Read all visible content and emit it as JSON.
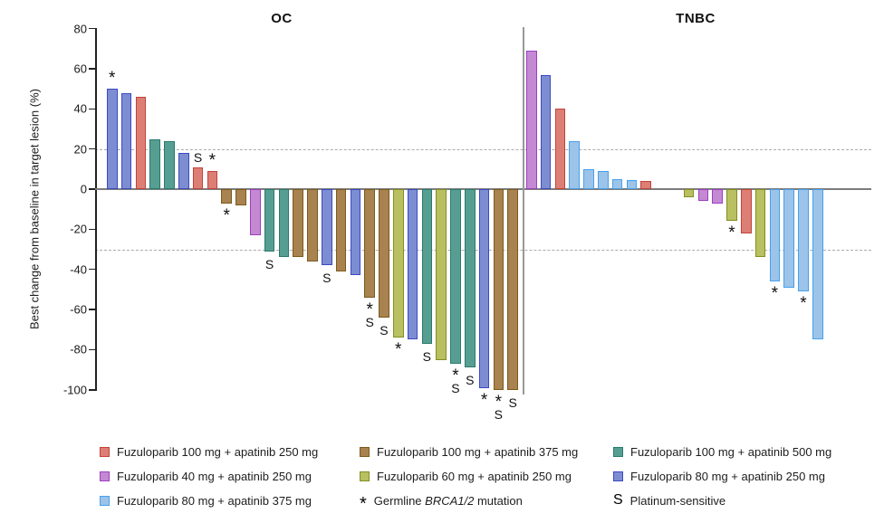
{
  "figure": {
    "y_axis_label": "Best change from baseline in target lesion (%)"
  },
  "chart_data": {
    "type": "bar",
    "subtype": "waterfall",
    "ylabel": "Best change from baseline in target lesion (%)",
    "ylim": [
      -100,
      80
    ],
    "yticks": [
      80,
      60,
      40,
      20,
      0,
      -20,
      -40,
      -60,
      -80,
      -100
    ],
    "reference_lines": [
      20,
      -30
    ],
    "grid": "off",
    "palette": {
      "red": {
        "fill": "#DD7E75",
        "border": "#C0443C"
      },
      "brown": {
        "fill": "#A8824F",
        "border": "#7C5A1E"
      },
      "teal": {
        "fill": "#579E92",
        "border": "#2A7A6C"
      },
      "purple": {
        "fill": "#C489D3",
        "border": "#9C3FC0"
      },
      "olive": {
        "fill": "#B8C061",
        "border": "#848E21"
      },
      "blueviolet": {
        "fill": "#7D8DD2",
        "border": "#3C49C3"
      },
      "lightblue": {
        "fill": "#9CC4E8",
        "border": "#47A0EE"
      }
    },
    "marker_meanings": {
      "*": "Germline BRCA1/2 mutation",
      "S": "Platinum-sensitive"
    },
    "panels": [
      {
        "name": "OC",
        "gap_after": null,
        "bars": [
          {
            "value": 50,
            "group": "blueviolet",
            "markers": [
              "*"
            ]
          },
          {
            "value": 48,
            "group": "blueviolet",
            "markers": []
          },
          {
            "value": 46,
            "group": "red",
            "markers": []
          },
          {
            "value": 25,
            "group": "teal",
            "markers": []
          },
          {
            "value": 24,
            "group": "teal",
            "markers": []
          },
          {
            "value": 18,
            "group": "blueviolet",
            "markers": []
          },
          {
            "value": 11,
            "group": "red",
            "markers": [
              "S"
            ]
          },
          {
            "value": 9,
            "group": "red",
            "markers": [
              "*"
            ]
          },
          {
            "value": -7,
            "group": "brown",
            "markers": [
              "*"
            ]
          },
          {
            "value": -8,
            "group": "brown",
            "markers": []
          },
          {
            "value": -23,
            "group": "purple",
            "markers": []
          },
          {
            "value": -31,
            "group": "teal",
            "markers": [
              "S"
            ]
          },
          {
            "value": -34,
            "group": "teal",
            "markers": []
          },
          {
            "value": -34,
            "group": "brown",
            "markers": []
          },
          {
            "value": -36,
            "group": "brown",
            "markers": []
          },
          {
            "value": -38,
            "group": "blueviolet",
            "markers": [
              "S"
            ]
          },
          {
            "value": -41,
            "group": "brown",
            "markers": []
          },
          {
            "value": -43,
            "group": "blueviolet",
            "markers": []
          },
          {
            "value": -54,
            "group": "brown",
            "markers": [
              "*",
              "S"
            ]
          },
          {
            "value": -64,
            "group": "brown",
            "markers": [
              "S"
            ]
          },
          {
            "value": -74,
            "group": "olive",
            "markers": [
              "*"
            ]
          },
          {
            "value": -75,
            "group": "blueviolet",
            "markers": []
          },
          {
            "value": -77,
            "group": "teal",
            "markers": [
              "S"
            ]
          },
          {
            "value": -85,
            "group": "olive",
            "markers": []
          },
          {
            "value": -87,
            "group": "teal",
            "markers": [
              "*",
              "S"
            ]
          },
          {
            "value": -89,
            "group": "teal",
            "markers": [
              "S"
            ]
          },
          {
            "value": -99,
            "group": "blueviolet",
            "markers": [
              "*"
            ]
          },
          {
            "value": -100,
            "group": "brown",
            "markers": [
              "*",
              "S"
            ]
          },
          {
            "value": -100,
            "group": "brown",
            "markers": [
              "S"
            ]
          }
        ]
      },
      {
        "name": "TNBC",
        "gap_after": 8,
        "gap_slots": 2,
        "bars": [
          {
            "value": 69,
            "group": "purple",
            "markers": []
          },
          {
            "value": 57,
            "group": "blueviolet",
            "markers": []
          },
          {
            "value": 40,
            "group": "red",
            "markers": []
          },
          {
            "value": 24,
            "group": "lightblue",
            "markers": []
          },
          {
            "value": 10,
            "group": "lightblue",
            "markers": []
          },
          {
            "value": 9,
            "group": "lightblue",
            "markers": []
          },
          {
            "value": 5,
            "group": "lightblue",
            "markers": []
          },
          {
            "value": 4.5,
            "group": "lightblue",
            "markers": []
          },
          {
            "value": 4,
            "group": "red",
            "markers": []
          },
          {
            "value": -4,
            "group": "olive",
            "markers": []
          },
          {
            "value": -6,
            "group": "purple",
            "markers": []
          },
          {
            "value": -7,
            "group": "purple",
            "markers": []
          },
          {
            "value": -16,
            "group": "olive",
            "markers": [
              "*"
            ]
          },
          {
            "value": -22,
            "group": "red",
            "markers": []
          },
          {
            "value": -34,
            "group": "olive",
            "markers": []
          },
          {
            "value": -46,
            "group": "lightblue",
            "markers": [
              "*"
            ]
          },
          {
            "value": -49,
            "group": "lightblue",
            "markers": []
          },
          {
            "value": -51,
            "group": "lightblue",
            "markers": [
              "*"
            ]
          },
          {
            "value": -75,
            "group": "lightblue",
            "markers": []
          }
        ]
      }
    ]
  },
  "legend": {
    "items": [
      {
        "type": "swatch",
        "color": "red",
        "label": "Fuzuloparib 100 mg + apatinib 250 mg"
      },
      {
        "type": "swatch",
        "color": "brown",
        "label": "Fuzuloparib 100 mg + apatinib 375 mg"
      },
      {
        "type": "swatch",
        "color": "teal",
        "label": "Fuzuloparib 100 mg + apatinib 500 mg"
      },
      {
        "type": "swatch",
        "color": "purple",
        "label": "Fuzuloparib 40 mg + apatinib 250 mg"
      },
      {
        "type": "swatch",
        "color": "olive",
        "label": "Fuzuloparib 60 mg + apatinib 250 mg"
      },
      {
        "type": "swatch",
        "color": "blueviolet",
        "label": "Fuzuloparib 80 mg + apatinib 250 mg"
      },
      {
        "type": "swatch",
        "color": "lightblue",
        "label": "Fuzuloparib 80 mg + apatinib 375 mg"
      },
      {
        "type": "asterisk",
        "symbol": "*",
        "label_prefix": "Germline ",
        "label_italic": "BRCA1/2",
        "label_suffix": " mutation"
      },
      {
        "type": "letter",
        "symbol": "S",
        "label": "Platinum-sensitive"
      }
    ]
  }
}
